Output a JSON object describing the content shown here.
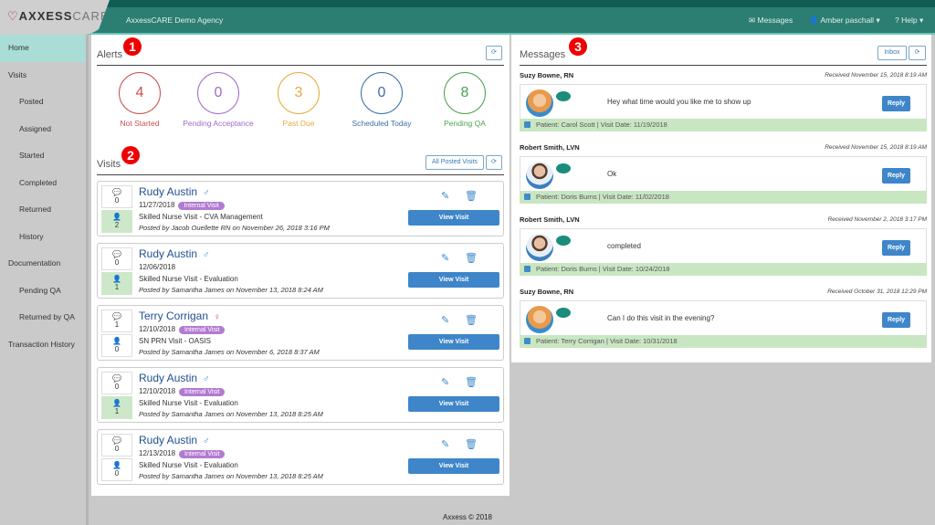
{
  "header": {
    "logo_bold": "AXXESS",
    "logo_light": "CARE",
    "agency": "AxxessCARE Demo Agency",
    "messages": "Messages",
    "user": "Amber paschall",
    "help": "Help",
    "colors": {
      "bar": "#2c7d72",
      "strip": "#0f5c52"
    }
  },
  "sidebar": {
    "items": [
      {
        "label": "Home",
        "sub": false,
        "active": true
      },
      {
        "label": "Visits",
        "sub": false
      },
      {
        "label": "Posted",
        "sub": true
      },
      {
        "label": "Assigned",
        "sub": true
      },
      {
        "label": "Started",
        "sub": true
      },
      {
        "label": "Completed",
        "sub": true
      },
      {
        "label": "Returned",
        "sub": true
      },
      {
        "label": "History",
        "sub": true
      },
      {
        "label": "Documentation",
        "sub": false
      },
      {
        "label": "Pending QA",
        "sub": true
      },
      {
        "label": "Returned by QA",
        "sub": true
      },
      {
        "label": "Transaction History",
        "sub": false
      }
    ]
  },
  "alerts": {
    "title": "Alerts",
    "badge": "1",
    "items": [
      {
        "count": "4",
        "label": "Not Started",
        "color": "#c9504f"
      },
      {
        "count": "0",
        "label": "Pending Acceptance",
        "color": "#a26ac9"
      },
      {
        "count": "3",
        "label": "Past Due",
        "color": "#e8a93a"
      },
      {
        "count": "0",
        "label": "Scheduled Today",
        "color": "#3d6fa8"
      },
      {
        "count": "8",
        "label": "Pending QA",
        "color": "#4aa34f"
      }
    ]
  },
  "visits": {
    "title": "Visits",
    "badge": "2",
    "all_posted": "All Posted Visits",
    "view_label": "View Visit",
    "items": [
      {
        "name": "Rudy Austin",
        "gender": "male",
        "date": "11/27/2018",
        "tag": "Internal Visit",
        "type": "Skilled Nurse Visit - CVA Management",
        "posted": "Posted by Jacob Ouellette RN on November 26, 2018 3:16 PM",
        "comments": "0",
        "users": "2",
        "users_green": true
      },
      {
        "name": "Rudy Austin",
        "gender": "male",
        "date": "12/06/2018",
        "tag": "",
        "type": "Skilled Nurse Visit - Evaluation",
        "posted": "Posted by Samantha James on November 13, 2018 8:24 AM",
        "comments": "0",
        "users": "1",
        "users_green": true
      },
      {
        "name": "Terry Corrigan",
        "gender": "female",
        "date": "12/10/2018",
        "tag": "Internal Visit",
        "type": "SN PRN Visit - OASIS",
        "posted": "Posted by Samantha James on November 6, 2018 8:37 AM",
        "comments": "1",
        "users": "0",
        "users_green": false
      },
      {
        "name": "Rudy Austin",
        "gender": "male",
        "date": "12/10/2018",
        "tag": "Internal Visit",
        "type": "Skilled Nurse Visit - Evaluation",
        "posted": "Posted by Samantha James on November 13, 2018 8:25 AM",
        "comments": "0",
        "users": "1",
        "users_green": true
      },
      {
        "name": "Rudy Austin",
        "gender": "male",
        "date": "12/13/2018",
        "tag": "Internal Visit",
        "type": "Skilled Nurse Visit - Evaluation",
        "posted": "Posted by Samantha James on November 13, 2018 8:25 AM",
        "comments": "0",
        "users": "0",
        "users_green": false
      }
    ]
  },
  "messages": {
    "title": "Messages",
    "badge": "3",
    "inbox": "Inbox",
    "reply_label": "Reply",
    "items": [
      {
        "sender": "Suzy Bowne, RN",
        "received": "Received November 15, 2018 8:19 AM",
        "text": "Hey what time would you like me to show up",
        "patient": "Patient: Carol Scott | Visit Date: 11/19/2018",
        "avatar": "female"
      },
      {
        "sender": "Robert Smith, LVN",
        "received": "Received November 15, 2018 8:19 AM",
        "text": "Ok",
        "patient": "Patient: Doris Burns | Visit Date: 11/02/2018",
        "avatar": "male"
      },
      {
        "sender": "Robert Smith, LVN",
        "received": "Received November 2, 2018 3:17 PM",
        "text": "completed",
        "patient": "Patient: Doris Burns | Visit Date: 10/24/2018",
        "avatar": "male"
      },
      {
        "sender": "Suzy Bowne, RN",
        "received": "Received October 31, 2018 12:29 PM",
        "text": "Can I do this visit in the evening?",
        "patient": "Patient: Terry Corrigan | Visit Date: 10/31/2018",
        "avatar": "female"
      }
    ]
  },
  "footer": "Axxess © 2018"
}
